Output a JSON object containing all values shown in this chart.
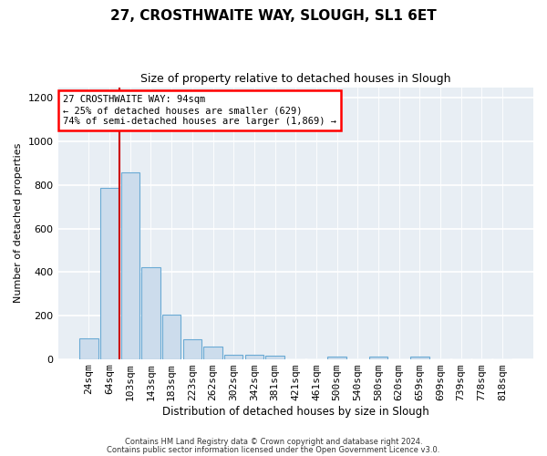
{
  "title": "27, CROSTHWAITE WAY, SLOUGH, SL1 6ET",
  "subtitle": "Size of property relative to detached houses in Slough",
  "xlabel": "Distribution of detached houses by size in Slough",
  "ylabel": "Number of detached properties",
  "bar_labels": [
    "24sqm",
    "64sqm",
    "103sqm",
    "143sqm",
    "183sqm",
    "223sqm",
    "262sqm",
    "302sqm",
    "342sqm",
    "381sqm",
    "421sqm",
    "461sqm",
    "500sqm",
    "540sqm",
    "580sqm",
    "620sqm",
    "659sqm",
    "699sqm",
    "739sqm",
    "778sqm",
    "818sqm"
  ],
  "bar_values": [
    95,
    785,
    860,
    420,
    205,
    90,
    55,
    20,
    20,
    15,
    0,
    0,
    10,
    0,
    10,
    0,
    10,
    0,
    0,
    0,
    0
  ],
  "bar_color": "#ccdcec",
  "bar_edgecolor": "#6aaad4",
  "vline_color": "#cc0000",
  "vline_x_idx": 1.5,
  "ylim": [
    0,
    1250
  ],
  "yticks": [
    0,
    200,
    400,
    600,
    800,
    1000,
    1200
  ],
  "annotation_line1": "27 CROSTHWAITE WAY: 94sqm",
  "annotation_line2": "← 25% of detached houses are smaller (629)",
  "annotation_line3": "74% of semi-detached houses are larger (1,869) →",
  "footer_line1": "Contains HM Land Registry data © Crown copyright and database right 2024.",
  "footer_line2": "Contains public sector information licensed under the Open Government Licence v3.0.",
  "bg_color": "#ffffff",
  "plot_bg_color": "#e8eef4"
}
